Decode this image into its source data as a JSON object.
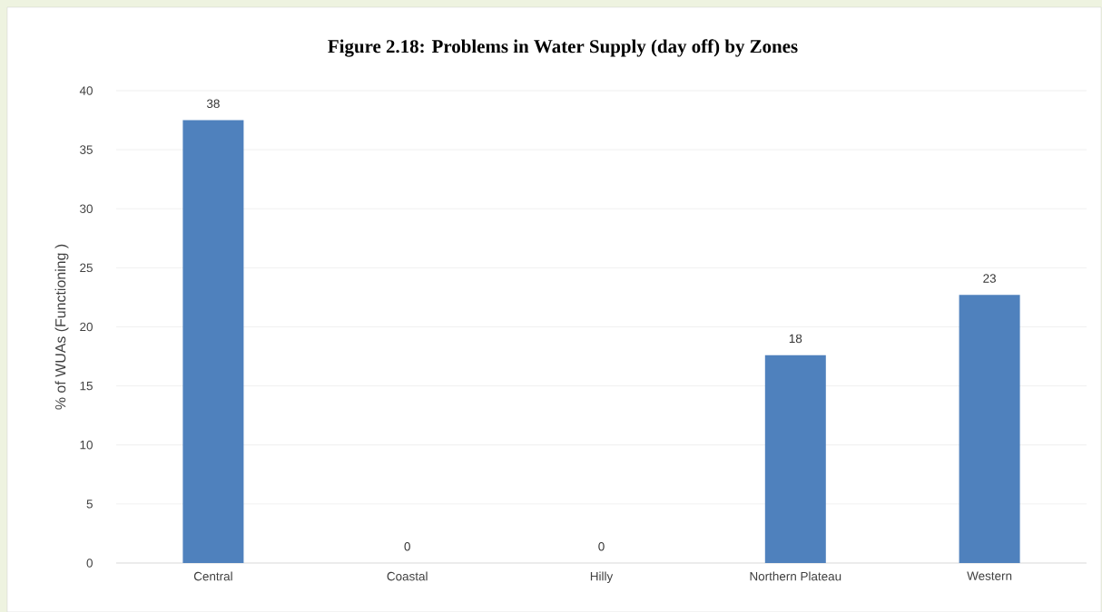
{
  "chart_data": {
    "type": "bar",
    "title": "Figure 2.18: Problems in Water Supply (day off) by Zones",
    "ylabel": "% of WUAs (Functioning )",
    "categories": [
      "Central",
      "Coastal",
      "Hilly",
      "Northern Plateau",
      "Western"
    ],
    "values": [
      37.5,
      0,
      0,
      17.6,
      22.7
    ],
    "value_labels": [
      "38",
      "0",
      "0",
      "18",
      "23"
    ],
    "color": "#4f81bd",
    "ylim": [
      0,
      40
    ],
    "yticks": [
      0,
      5,
      10,
      15,
      20,
      25,
      30,
      35,
      40
    ],
    "grid": "y"
  }
}
